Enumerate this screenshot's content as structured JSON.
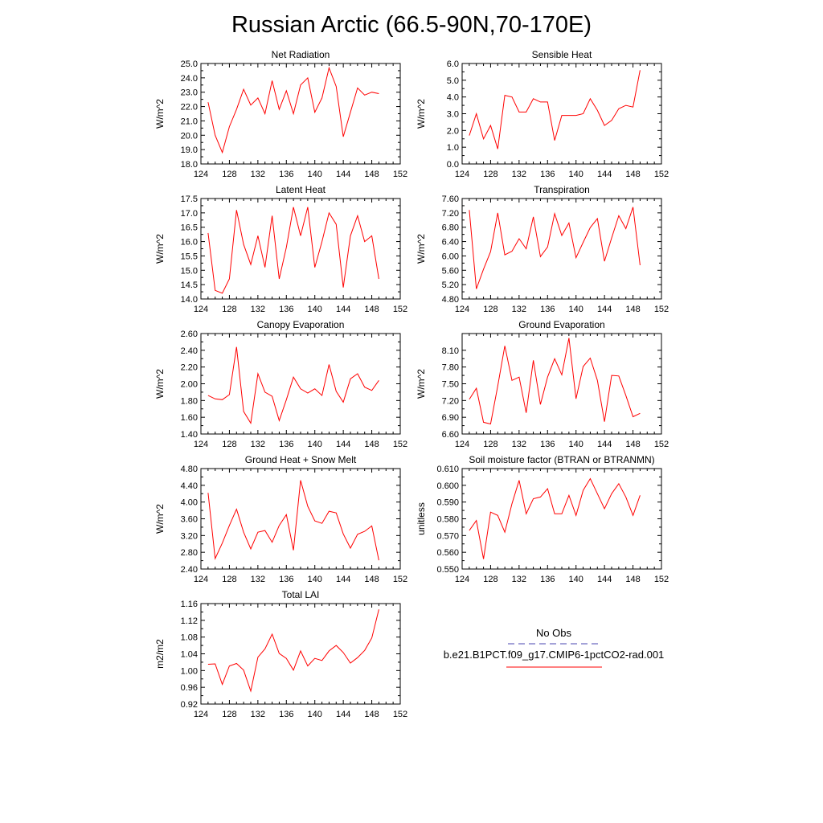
{
  "figure": {
    "title": "Russian Arctic (66.5-90N,70-170E)",
    "line_color": "#ff0000",
    "obs_color": "#4a46b0"
  },
  "legend": {
    "entries": [
      {
        "label": "No Obs",
        "style": "dashed",
        "color": "#4a46b0"
      },
      {
        "label": "b.e21.B1PCT.f09_g17.CMIP6-1pctCO2-rad.001",
        "style": "solid",
        "color": "#ff0000"
      }
    ]
  },
  "chart_data": [
    {
      "type": "line",
      "title": "Net Radiation",
      "ylabel": "W/m^2",
      "xlim": [
        124,
        152
      ],
      "xticks": [
        124,
        128,
        132,
        136,
        140,
        144,
        148,
        152
      ],
      "ylim": [
        18.0,
        25.0
      ],
      "yticks": [
        "18.0",
        "19.0",
        "20.0",
        "21.0",
        "22.0",
        "23.0",
        "24.0",
        "25.0"
      ],
      "x": [
        125,
        126,
        127,
        128,
        129,
        130,
        131,
        132,
        133,
        134,
        135,
        136,
        137,
        138,
        139,
        140,
        141,
        142,
        143,
        144,
        145,
        146,
        147,
        148,
        149
      ],
      "series": [
        {
          "values": [
            22.3,
            20.0,
            18.8,
            20.6,
            21.8,
            23.2,
            22.1,
            22.6,
            21.5,
            23.8,
            21.8,
            23.1,
            21.5,
            23.5,
            24.0,
            21.6,
            22.6,
            24.7,
            23.4,
            19.9,
            21.6,
            23.3,
            22.8,
            23.0,
            22.9
          ]
        }
      ]
    },
    {
      "type": "line",
      "title": "Sensible Heat",
      "ylabel": "W/m^2",
      "xlim": [
        124,
        152
      ],
      "xticks": [
        124,
        128,
        132,
        136,
        140,
        144,
        148,
        152
      ],
      "ylim": [
        0.0,
        6.0
      ],
      "yticks": [
        "0.0",
        "1.0",
        "2.0",
        "3.0",
        "4.0",
        "5.0",
        "6.0"
      ],
      "x": [
        125,
        126,
        127,
        128,
        129,
        130,
        131,
        132,
        133,
        134,
        135,
        136,
        137,
        138,
        139,
        140,
        141,
        142,
        143,
        144,
        145,
        146,
        147,
        148,
        149
      ],
      "series": [
        {
          "values": [
            1.7,
            3.0,
            1.5,
            2.3,
            0.9,
            4.1,
            4.0,
            3.1,
            3.1,
            3.9,
            3.7,
            3.7,
            1.4,
            2.9,
            2.9,
            2.9,
            3.0,
            3.9,
            3.2,
            2.3,
            2.6,
            3.3,
            3.5,
            3.4,
            5.6
          ]
        }
      ]
    },
    {
      "type": "line",
      "title": "Latent Heat",
      "ylabel": "W/m^2",
      "xlim": [
        124,
        152
      ],
      "xticks": [
        124,
        128,
        132,
        136,
        140,
        144,
        148,
        152
      ],
      "ylim": [
        14.0,
        17.5
      ],
      "yticks": [
        "14.0",
        "14.5",
        "15.0",
        "15.5",
        "16.0",
        "16.5",
        "17.0",
        "17.5"
      ],
      "x": [
        125,
        126,
        127,
        128,
        129,
        130,
        131,
        132,
        133,
        134,
        135,
        136,
        137,
        138,
        139,
        140,
        141,
        142,
        143,
        144,
        145,
        146,
        147,
        148,
        149
      ],
      "series": [
        {
          "values": [
            16.3,
            14.3,
            14.2,
            14.7,
            17.1,
            15.9,
            15.2,
            16.2,
            15.1,
            16.9,
            14.7,
            15.8,
            17.2,
            16.2,
            17.2,
            15.1,
            16.0,
            17.0,
            16.6,
            14.4,
            16.2,
            16.9,
            16.0,
            16.2,
            14.7
          ]
        }
      ]
    },
    {
      "type": "line",
      "title": "Transpiration",
      "ylabel": "W/m^2",
      "xlim": [
        124,
        152
      ],
      "xticks": [
        124,
        128,
        132,
        136,
        140,
        144,
        148,
        152
      ],
      "ylim": [
        4.8,
        7.6
      ],
      "yticks": [
        "4.80",
        "5.20",
        "5.60",
        "6.00",
        "6.40",
        "6.80",
        "7.20",
        "7.60"
      ],
      "x": [
        125,
        126,
        127,
        128,
        129,
        130,
        131,
        132,
        133,
        134,
        135,
        136,
        137,
        138,
        139,
        140,
        141,
        142,
        143,
        144,
        145,
        146,
        147,
        148,
        149
      ],
      "series": [
        {
          "values": [
            7.28,
            5.08,
            5.63,
            6.12,
            7.2,
            6.03,
            6.13,
            6.48,
            6.2,
            7.09,
            5.98,
            6.25,
            7.18,
            6.57,
            6.92,
            5.95,
            6.38,
            6.79,
            7.04,
            5.85,
            6.5,
            7.12,
            6.76,
            7.36,
            5.74
          ]
        }
      ]
    },
    {
      "type": "line",
      "title": "Canopy Evaporation",
      "ylabel": "W/m^2",
      "xlim": [
        124,
        152
      ],
      "xticks": [
        124,
        128,
        132,
        136,
        140,
        144,
        148,
        152
      ],
      "ylim": [
        1.4,
        2.6
      ],
      "yticks": [
        "1.40",
        "1.60",
        "1.80",
        "2.00",
        "2.20",
        "2.40",
        "2.60"
      ],
      "x": [
        125,
        126,
        127,
        128,
        129,
        130,
        131,
        132,
        133,
        134,
        135,
        136,
        137,
        138,
        139,
        140,
        141,
        142,
        143,
        144,
        145,
        146,
        147,
        148,
        149
      ],
      "series": [
        {
          "values": [
            1.86,
            1.82,
            1.81,
            1.87,
            2.44,
            1.67,
            1.53,
            2.12,
            1.9,
            1.85,
            1.56,
            1.81,
            2.08,
            1.94,
            1.89,
            1.94,
            1.86,
            2.23,
            1.91,
            1.78,
            2.06,
            2.12,
            1.96,
            1.92,
            2.04
          ]
        }
      ]
    },
    {
      "type": "line",
      "title": "Ground Evaporation",
      "ylabel": "W/m^2",
      "xlim": [
        124,
        152
      ],
      "xticks": [
        124,
        128,
        132,
        136,
        140,
        144,
        148,
        152
      ],
      "ylim": [
        6.6,
        8.4
      ],
      "yticks": [
        "6.60",
        "6.90",
        "7.20",
        "7.50",
        "7.80",
        "8.10"
      ],
      "x": [
        125,
        126,
        127,
        128,
        129,
        130,
        131,
        132,
        133,
        134,
        135,
        136,
        137,
        138,
        139,
        140,
        141,
        142,
        143,
        144,
        145,
        146,
        147,
        148,
        149
      ],
      "series": [
        {
          "values": [
            7.22,
            7.42,
            6.81,
            6.78,
            7.46,
            8.18,
            7.56,
            7.62,
            6.98,
            7.92,
            7.13,
            7.62,
            7.95,
            7.66,
            8.32,
            7.23,
            7.81,
            7.96,
            7.56,
            6.82,
            7.65,
            7.64,
            7.29,
            6.91,
            6.97
          ]
        }
      ]
    },
    {
      "type": "line",
      "title": "Ground Heat + Snow Melt",
      "ylabel": "W/m^2",
      "xlim": [
        124,
        152
      ],
      "xticks": [
        124,
        128,
        132,
        136,
        140,
        144,
        148,
        152
      ],
      "ylim": [
        2.4,
        4.8
      ],
      "yticks": [
        "2.40",
        "2.80",
        "3.20",
        "3.60",
        "4.00",
        "4.40",
        "4.80"
      ],
      "x": [
        125,
        126,
        127,
        128,
        129,
        130,
        131,
        132,
        133,
        134,
        135,
        136,
        137,
        138,
        139,
        140,
        141,
        142,
        143,
        144,
        145,
        146,
        147,
        148,
        149
      ],
      "series": [
        {
          "values": [
            4.22,
            2.65,
            3.02,
            3.44,
            3.83,
            3.28,
            2.88,
            3.28,
            3.32,
            3.04,
            3.44,
            3.7,
            2.85,
            4.52,
            3.9,
            3.55,
            3.49,
            3.78,
            3.74,
            3.24,
            2.9,
            3.23,
            3.3,
            3.43,
            2.61
          ]
        }
      ]
    },
    {
      "type": "line",
      "title": "Soil moisture factor (BTRAN or BTRANMN)",
      "ylabel": "unitless",
      "xlim": [
        124,
        152
      ],
      "xticks": [
        124,
        128,
        132,
        136,
        140,
        144,
        148,
        152
      ],
      "ylim": [
        0.55,
        0.61
      ],
      "yticks": [
        "0.550",
        "0.560",
        "0.570",
        "0.580",
        "0.590",
        "0.600",
        "0.610"
      ],
      "x": [
        125,
        126,
        127,
        128,
        129,
        130,
        131,
        132,
        133,
        134,
        135,
        136,
        137,
        138,
        139,
        140,
        141,
        142,
        143,
        144,
        145,
        146,
        147,
        148,
        149
      ],
      "series": [
        {
          "values": [
            0.573,
            0.579,
            0.556,
            0.584,
            0.582,
            0.572,
            0.589,
            0.603,
            0.583,
            0.592,
            0.593,
            0.598,
            0.583,
            0.583,
            0.594,
            0.582,
            0.597,
            0.604,
            0.595,
            0.586,
            0.595,
            0.601,
            0.593,
            0.582,
            0.594
          ]
        }
      ]
    },
    {
      "type": "line",
      "title": "Total LAI",
      "ylabel": "m2/m2",
      "xlim": [
        124,
        152
      ],
      "xticks": [
        124,
        128,
        132,
        136,
        140,
        144,
        148,
        152
      ],
      "ylim": [
        0.92,
        1.16
      ],
      "yticks": [
        "0.92",
        "0.96",
        "1.00",
        "1.04",
        "1.08",
        "1.12",
        "1.16"
      ],
      "x": [
        125,
        126,
        127,
        128,
        129,
        130,
        131,
        132,
        133,
        134,
        135,
        136,
        137,
        138,
        139,
        140,
        141,
        142,
        143,
        144,
        145,
        146,
        147,
        148,
        149
      ],
      "series": [
        {
          "values": [
            1.015,
            1.016,
            0.967,
            1.011,
            1.017,
            1.001,
            0.951,
            1.032,
            1.052,
            1.087,
            1.041,
            1.029,
            1.001,
            1.047,
            1.011,
            1.029,
            1.024,
            1.047,
            1.06,
            1.043,
            1.018,
            1.031,
            1.048,
            1.078,
            1.146
          ]
        }
      ]
    }
  ]
}
